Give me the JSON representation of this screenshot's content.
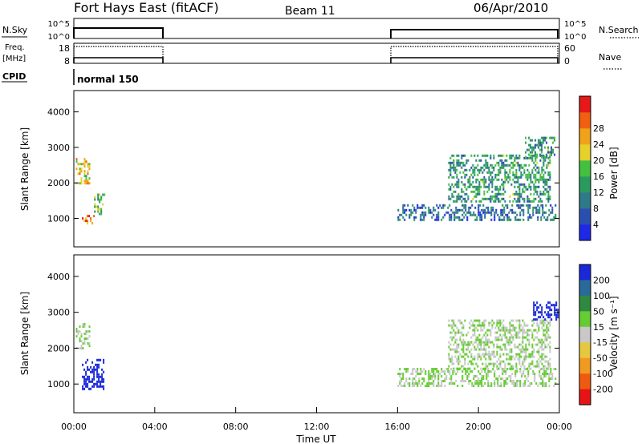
{
  "header": {
    "station": "Fort Hays East (fitACF)",
    "beam": "Beam 11",
    "date": "06/Apr/2010"
  },
  "panels": {
    "nsky": {
      "label": "N.Sky",
      "tick_top": "10^5",
      "tick_bottom": "10^0",
      "right_label": "N.Search",
      "right_tick_top": "10^5",
      "right_tick_bottom": "10^0"
    },
    "freq": {
      "label_line1": "Freq.",
      "label_line2": "[MHz]",
      "tick_top": "18",
      "tick_bottom": "8",
      "right_label": "Nave",
      "right_tick_top": "60",
      "right_tick_bottom": "0"
    },
    "cpid": {
      "label": "CPID",
      "mode": "normal 150"
    }
  },
  "colors": {
    "power_scale": [
      "#1e28e6",
      "#2a4fb0",
      "#2f7a8a",
      "#2a9a5e",
      "#44c040",
      "#e6d02a",
      "#f0a21a",
      "#f06010",
      "#e61818"
    ],
    "velocity_scale": [
      "#1a28d8",
      "#2a6a9a",
      "#2e8a40",
      "#66cc33",
      "#c8c8c8",
      "#e6c840",
      "#f09a20",
      "#f05a10",
      "#e61414"
    ]
  },
  "chart_data": [
    {
      "type": "heatmap",
      "name": "power",
      "ylabel": "Slant Range [km]",
      "ylim": [
        200,
        4600
      ],
      "y_ticks": [
        "1000",
        "2000",
        "3000",
        "4000"
      ],
      "y_tick_values": [
        1000,
        2000,
        3000,
        4000
      ],
      "xlim": [
        0,
        24
      ],
      "colorbar": {
        "label": "Power [dB]",
        "ticks": [
          "4",
          "8",
          "12",
          "16",
          "20",
          "24",
          "28"
        ],
        "tick_values": [
          4,
          8,
          12,
          16,
          20,
          24,
          28
        ],
        "range": [
          0,
          32
        ]
      },
      "echo_regions": [
        {
          "t_start": 0.1,
          "t_end": 0.8,
          "r_start": 2000,
          "r_end": 2700,
          "value": 20
        },
        {
          "t_start": 0.4,
          "t_end": 1.0,
          "r_start": 850,
          "r_end": 1100,
          "value": 24
        },
        {
          "t_start": 1.0,
          "t_end": 1.5,
          "r_start": 1150,
          "r_end": 1700,
          "value": 16
        },
        {
          "t_start": 16.0,
          "t_end": 23.8,
          "r_start": 950,
          "r_end": 1400,
          "value": 8
        },
        {
          "t_start": 18.5,
          "t_end": 23.5,
          "r_start": 1450,
          "r_end": 2800,
          "value": 12
        },
        {
          "t_start": 22.3,
          "t_end": 23.8,
          "r_start": 2700,
          "r_end": 3300,
          "value": 12
        }
      ]
    },
    {
      "type": "heatmap",
      "name": "velocity",
      "ylabel": "Slant Range [km]",
      "xlabel": "Time UT",
      "ylim": [
        200,
        4600
      ],
      "y_ticks": [
        "1000",
        "2000",
        "3000",
        "4000"
      ],
      "y_tick_values": [
        1000,
        2000,
        3000,
        4000
      ],
      "xlim": [
        0,
        24
      ],
      "x_ticks": [
        "00:00",
        "04:00",
        "08:00",
        "12:00",
        "16:00",
        "20:00",
        "00:00"
      ],
      "x_tick_values": [
        0,
        4,
        8,
        12,
        16,
        20,
        24
      ],
      "colorbar": {
        "label": "Velocity [m s⁻¹]",
        "ticks": [
          "200",
          "100",
          "50",
          "15",
          "-15",
          "-50",
          "-100",
          "-200"
        ],
        "tick_values": [
          200,
          100,
          50,
          15,
          -15,
          -50,
          -100,
          -200
        ]
      },
      "echo_regions": [
        {
          "t_start": 0.1,
          "t_end": 0.8,
          "r_start": 2000,
          "r_end": 2700,
          "value": 0
        },
        {
          "t_start": 0.4,
          "t_end": 1.5,
          "r_start": 850,
          "r_end": 1700,
          "value": 200
        },
        {
          "t_start": 16.0,
          "t_end": 23.8,
          "r_start": 950,
          "r_end": 1450,
          "value": 0
        },
        {
          "t_start": 18.5,
          "t_end": 23.5,
          "r_start": 1450,
          "r_end": 2800,
          "value": 0
        },
        {
          "t_start": 22.7,
          "t_end": 23.9,
          "r_start": 2800,
          "r_end": 3300,
          "value": 200
        }
      ]
    }
  ]
}
